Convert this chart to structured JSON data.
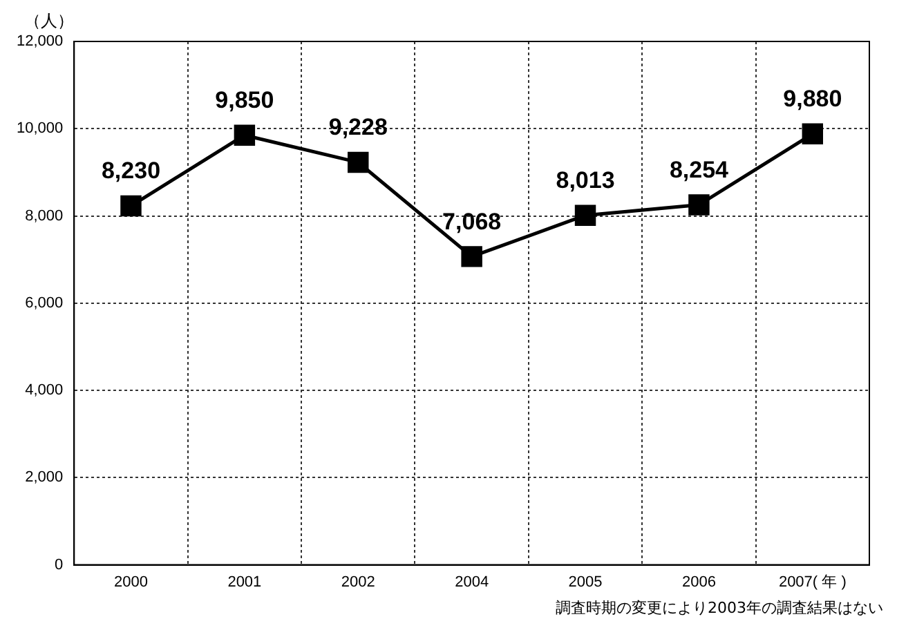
{
  "chart_data": {
    "type": "line",
    "ylabel": "（人）",
    "categories": [
      "2000",
      "2001",
      "2002",
      "2004",
      "2005",
      "2006",
      "2007( 年 )"
    ],
    "series": [
      {
        "color": "#000000",
        "values": [
          8230,
          9850,
          9228,
          7068,
          8013,
          8254,
          9880
        ],
        "value_labels": [
          "8,230",
          "9,850",
          "9,228",
          "7,068",
          "8,013",
          "8,254",
          "9,880"
        ]
      }
    ],
    "ylim": [
      0,
      12000
    ],
    "yticks": [
      {
        "value": 0,
        "label": "0"
      },
      {
        "value": 2000,
        "label": "2,000"
      },
      {
        "value": 4000,
        "label": "4,000"
      },
      {
        "value": 6000,
        "label": "6,000"
      },
      {
        "value": 8000,
        "label": "8,000"
      },
      {
        "value": 10000,
        "label": "10,000"
      },
      {
        "value": 12000,
        "label": "12,000"
      }
    ],
    "grid": true,
    "legend": false,
    "marker": "square",
    "line_style": "solid",
    "annotations": [
      "調査時期の変更により2003年の調査結果はない"
    ]
  }
}
